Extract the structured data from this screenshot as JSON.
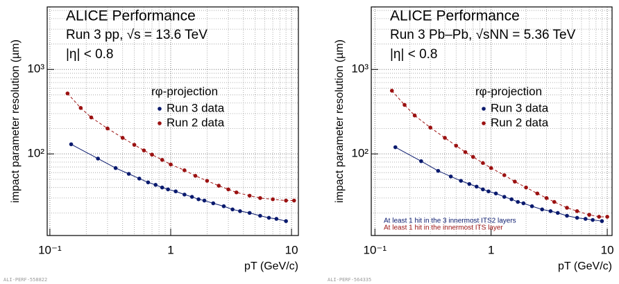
{
  "chart_data": [
    {
      "type": "line",
      "title": "ALICE Performance",
      "subtitle": "Run 3 pp, √s = 13.6 TeV",
      "annotation": "|η| < 0.8",
      "legend_title": "rφ-projection",
      "x_label": "pT (GeV/c)",
      "y_label": "impact parameter resolution (µm)",
      "footer": "ALI-PERF-558822",
      "xlog": true,
      "ylog": true,
      "grid": true,
      "xlim": [
        0.095,
        11.4
      ],
      "ylim": [
        10.8,
        5500
      ],
      "xticks": [
        {
          "value": 0.1,
          "label": "10⁻¹"
        },
        1,
        10
      ],
      "yticks": [
        {
          "value": 100,
          "label": "10²"
        },
        {
          "value": 1000,
          "label": "10³"
        }
      ],
      "series": [
        {
          "name": "Run 3 data",
          "color": "#0a1a6e",
          "dash": false,
          "x": [
            0.15,
            0.25,
            0.35,
            0.45,
            0.55,
            0.65,
            0.75,
            0.85,
            0.95,
            1.1,
            1.3,
            1.5,
            1.7,
            1.9,
            2.25,
            2.75,
            3.25,
            3.75,
            4.5,
            5.5,
            6.5,
            7.5,
            9
          ],
          "values": [
            130,
            88,
            68,
            58,
            51,
            46,
            43,
            40,
            38,
            36,
            33,
            31,
            29,
            28,
            26,
            24,
            22,
            21,
            20,
            18.5,
            17.5,
            17,
            16
          ]
        },
        {
          "name": "Run 2 data",
          "color": "#9b1111",
          "dash": true,
          "x": [
            0.14,
            0.18,
            0.22,
            0.3,
            0.4,
            0.5,
            0.6,
            0.7,
            0.85,
            1.0,
            1.3,
            1.6,
            2.0,
            2.5,
            3.0,
            3.5,
            4.5,
            5.5,
            7,
            9,
            10.5
          ],
          "values": [
            520,
            350,
            270,
            200,
            155,
            128,
            110,
            98,
            85,
            75,
            64,
            55,
            48,
            42,
            38,
            35,
            32,
            30,
            29,
            28,
            28
          ]
        }
      ]
    },
    {
      "type": "line",
      "title": "ALICE Performance",
      "subtitle": "Run 3 Pb–Pb, √sNN = 5.36 TeV",
      "annotation": "|η| < 0.8",
      "legend_title": "rφ-projection",
      "x_label": "pT (GeV/c)",
      "y_label": "impact parameter resolution (µm)",
      "footer": "ALI-PERF-564335",
      "notes": [
        {
          "text": "At least 1 hit in the 3 innermost ITS2 layers",
          "color": "#0a1a6e"
        },
        {
          "text": "At least 1 hit in the innermost ITS layer",
          "color": "#9b1111"
        }
      ],
      "xlog": true,
      "ylog": true,
      "grid": true,
      "xlim": [
        0.093,
        11.0
      ],
      "ylim": [
        10.8,
        5500
      ],
      "xticks": [
        {
          "value": 0.1,
          "label": "10⁻¹"
        },
        1,
        10
      ],
      "yticks": [
        {
          "value": 100,
          "label": "10²"
        },
        {
          "value": 1000,
          "label": "10³"
        }
      ],
      "series": [
        {
          "name": "Run 3 data",
          "color": "#0a1a6e",
          "dash": false,
          "x": [
            0.15,
            0.25,
            0.35,
            0.45,
            0.55,
            0.65,
            0.75,
            0.85,
            0.95,
            1.1,
            1.3,
            1.5,
            1.7,
            1.9,
            2.25,
            2.75,
            3.25,
            3.75,
            4.5,
            5.5,
            6.5,
            7.5,
            9
          ],
          "values": [
            120,
            82,
            63,
            54,
            48,
            44,
            41,
            38,
            36,
            34,
            31,
            29,
            27,
            26,
            24,
            22,
            21,
            20,
            18.5,
            17.5,
            17,
            16.5,
            16
          ]
        },
        {
          "name": "Run 2 data",
          "color": "#9b1111",
          "dash": true,
          "x": [
            0.14,
            0.18,
            0.22,
            0.3,
            0.4,
            0.5,
            0.6,
            0.7,
            0.85,
            1.0,
            1.3,
            1.6,
            2.0,
            2.5,
            3.0,
            3.5,
            4.5,
            5.5,
            7,
            8.5,
            10
          ],
          "values": [
            560,
            380,
            285,
            205,
            155,
            125,
            105,
            92,
            78,
            68,
            56,
            47,
            40,
            34,
            30,
            27,
            23,
            21,
            19,
            18,
            18
          ]
        }
      ]
    }
  ]
}
